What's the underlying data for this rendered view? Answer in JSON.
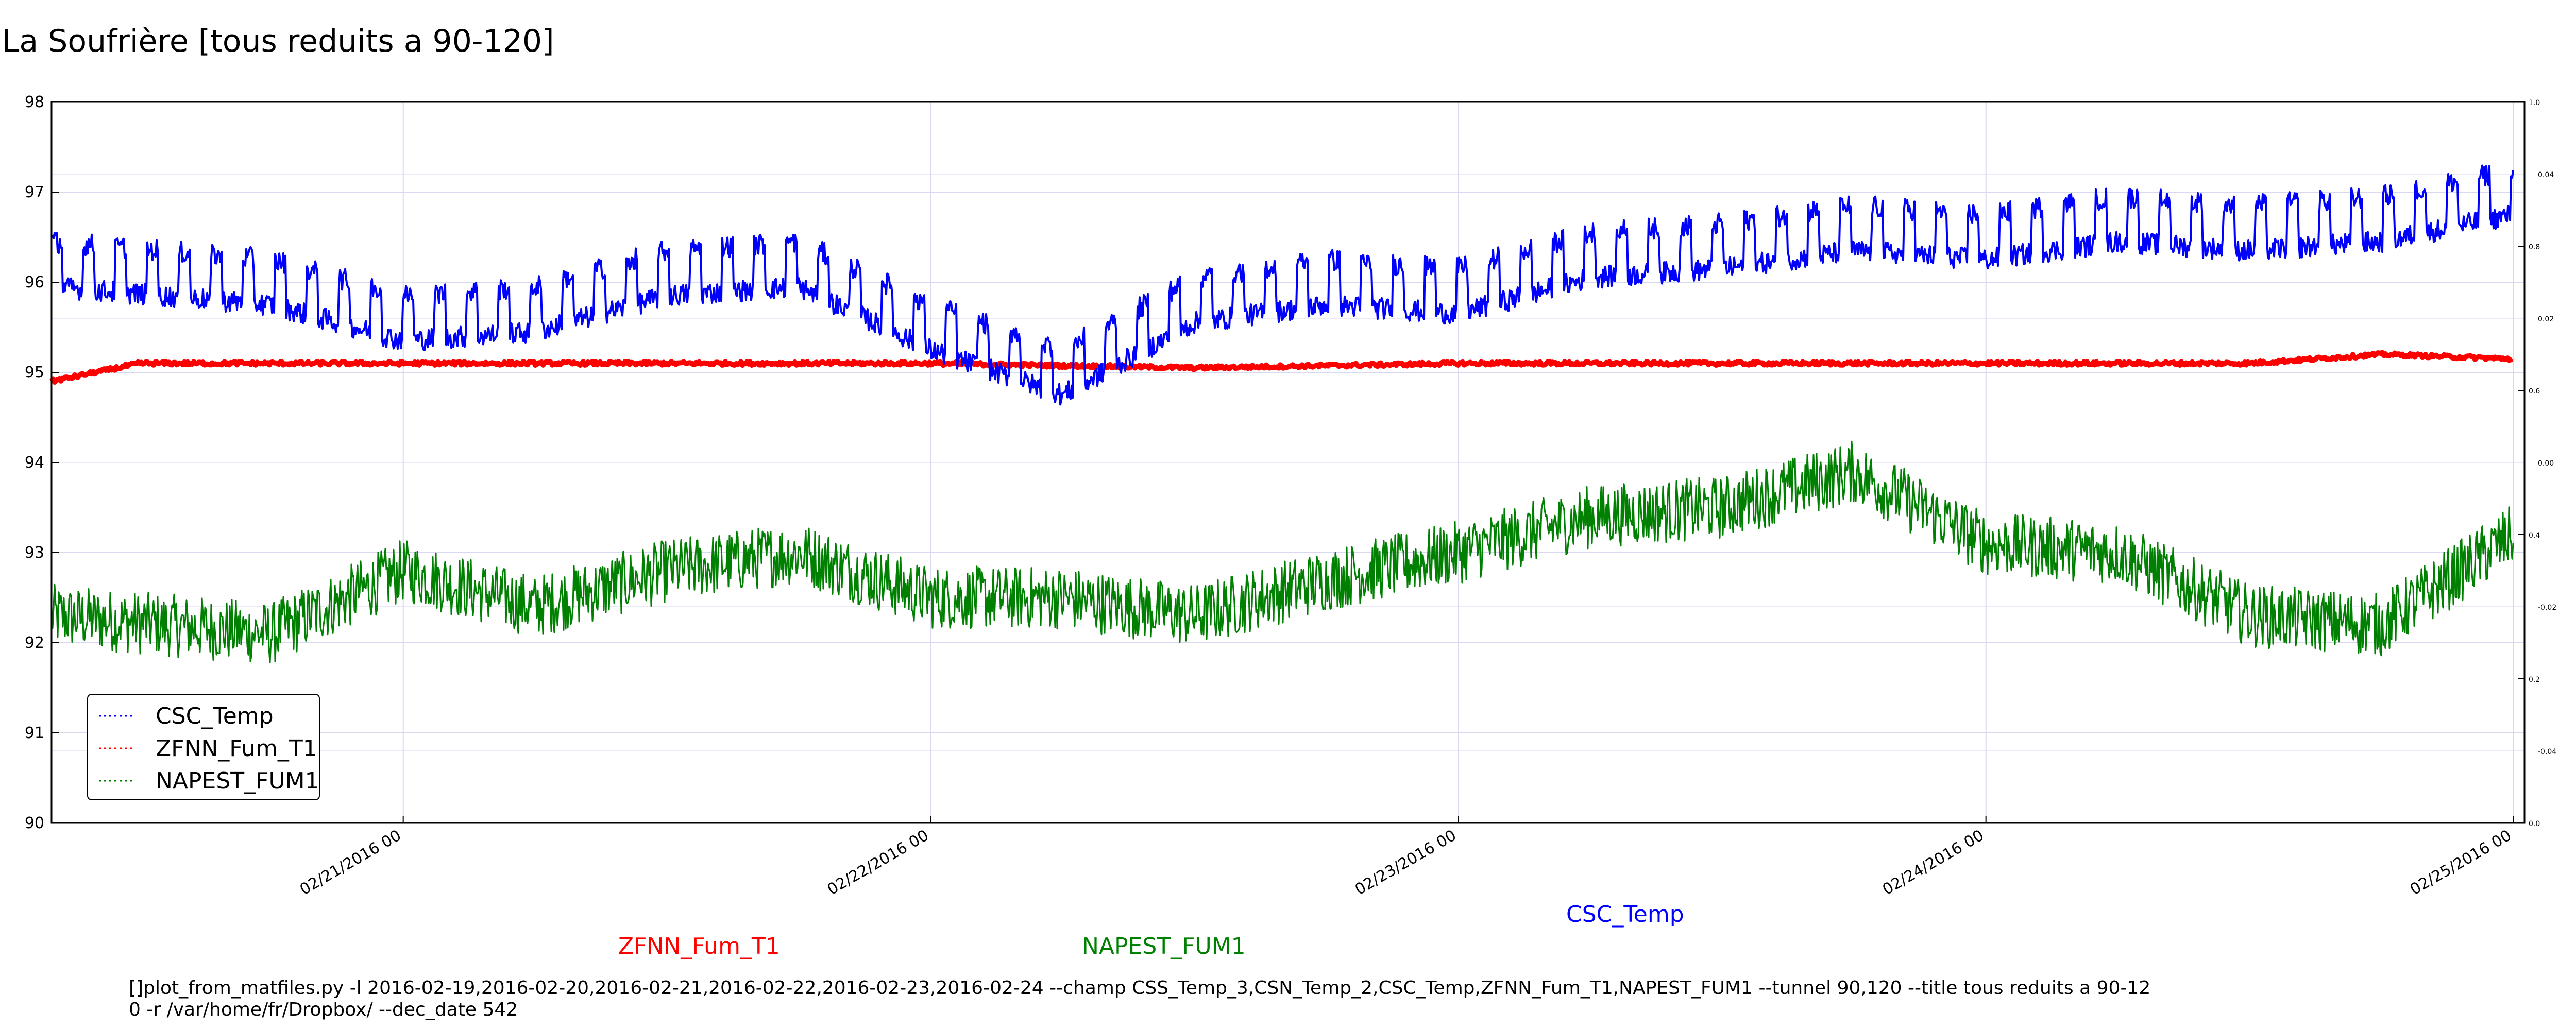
{
  "chart_data": {
    "type": "line",
    "title": "La Soufrière [tous reduits a 90-120]",
    "y_left": {
      "min": 90,
      "max": 98,
      "ticks": [
        "90",
        "91",
        "92",
        "93",
        "94",
        "95",
        "96",
        "97",
        "98"
      ]
    },
    "y_right_a": {
      "min": 0,
      "max": 1,
      "ticks": [
        "0.0",
        "0.2",
        "0.4",
        "0.6",
        "0.8",
        "1.0"
      ]
    },
    "y_right_b": {
      "ticks": [
        "0.04",
        "0.02",
        "0.00",
        "-0.02",
        "-0.04"
      ]
    },
    "x_axis": {
      "start": "2016-02-20T08:00",
      "end": "2016-02-25T00:30",
      "ticks": [
        "02/21/2016 00",
        "02/22/2016 00",
        "02/23/2016 00",
        "02/24/2016 00",
        "02/25/2016 00"
      ]
    },
    "grid": true,
    "legend_position": "lower-left",
    "legend": [
      "CSC_Temp",
      "ZFNN_Fum_T1",
      "NAPEST_FUM1"
    ],
    "series": [
      {
        "name": "CSC_Temp",
        "color": "#0000ff",
        "x": [
          "2016-02-20T08:00",
          "2016-02-20T18:00",
          "2016-02-21T00:00",
          "2016-02-21T06:00",
          "2016-02-21T12:00",
          "2016-02-21T18:00",
          "2016-02-22T00:00",
          "2016-02-22T06:00",
          "2016-02-22T12:00",
          "2016-02-22T18:00",
          "2016-02-23T00:00",
          "2016-02-23T06:00",
          "2016-02-23T12:00",
          "2016-02-23T18:00",
          "2016-02-24T00:00",
          "2016-02-24T06:00",
          "2016-02-24T12:00",
          "2016-02-24T18:00",
          "2016-02-25T00:00"
        ],
        "values": [
          96.0,
          95.8,
          95.4,
          95.5,
          95.9,
          96.0,
          95.3,
          94.8,
          95.6,
          95.8,
          95.7,
          96.1,
          96.2,
          96.4,
          96.3,
          96.5,
          96.4,
          96.5,
          96.8
        ]
      },
      {
        "name": "ZFNN_Fum_T1",
        "color": "#ff0000",
        "x": [
          "2016-02-20T08:00",
          "2016-02-20T12:00",
          "2016-02-21T00:00",
          "2016-02-21T12:00",
          "2016-02-22T00:00",
          "2016-02-22T12:00",
          "2016-02-23T00:00",
          "2016-02-23T12:00",
          "2016-02-24T00:00",
          "2016-02-24T12:00",
          "2016-02-24T18:00",
          "2016-02-25T00:00"
        ],
        "values": [
          94.9,
          95.1,
          95.1,
          95.1,
          95.1,
          95.05,
          95.1,
          95.1,
          95.1,
          95.1,
          95.2,
          95.15
        ]
      },
      {
        "name": "NAPEST_FUM1",
        "color": "#008000",
        "x": [
          "2016-02-20T08:00",
          "2016-02-20T18:00",
          "2016-02-21T00:00",
          "2016-02-21T06:00",
          "2016-02-21T12:00",
          "2016-02-21T18:00",
          "2016-02-22T00:00",
          "2016-02-22T06:00",
          "2016-02-22T12:00",
          "2016-02-22T18:00",
          "2016-02-23T00:00",
          "2016-02-23T06:00",
          "2016-02-23T12:00",
          "2016-02-23T18:00",
          "2016-02-24T00:00",
          "2016-02-24T06:00",
          "2016-02-24T12:00",
          "2016-02-24T18:00",
          "2016-02-25T00:00"
        ],
        "values": [
          92.3,
          92.1,
          92.8,
          92.4,
          92.8,
          93.0,
          92.5,
          92.5,
          92.3,
          92.7,
          93.0,
          93.4,
          93.5,
          93.9,
          93.1,
          93.0,
          92.3,
          92.2,
          93.2
        ]
      }
    ],
    "x_labels_below": [
      {
        "text": "ZFNN_Fum_T1",
        "color": "#ff0000"
      },
      {
        "text": "NAPEST_FUM1",
        "color": "#008000"
      },
      {
        "text": "CSC_Temp",
        "color": "#0000ff"
      }
    ],
    "command_line": [
      "[]plot_from_matfiles.py -l 2016-02-19,2016-02-20,2016-02-21,2016-02-22,2016-02-23,2016-02-24 --champ CSS_Temp_3,CSN_Temp_2,CSC_Temp,ZFNN_Fum_T1,NAPEST_FUM1 --tunnel 90,120 --title tous reduits a 90-12",
      "0 -r /var/home/fr/Dropbox/ --dec_date 542"
    ]
  }
}
